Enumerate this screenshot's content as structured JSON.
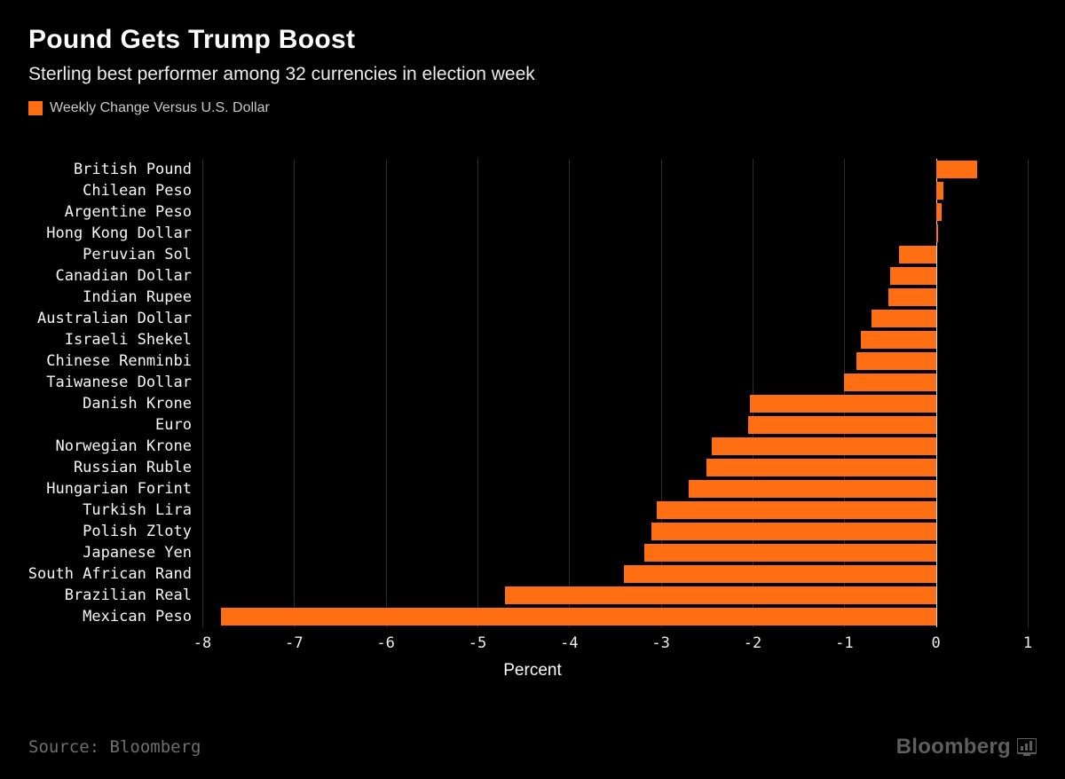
{
  "header": {
    "title": "Pound Gets Trump Boost",
    "subtitle": "Sterling best performer among 32 currencies in election week"
  },
  "legend": {
    "label": "Weekly Change Versus U.S. Dollar",
    "swatch_color": "#ff6e12"
  },
  "chart_data": {
    "type": "bar",
    "orientation": "horizontal",
    "title": "Pound Gets Trump Boost",
    "subtitle": "Sterling best performer among 32 currencies in election week",
    "series_name": "Weekly Change Versus U.S. Dollar",
    "categories": [
      "British Pound",
      "Chilean Peso",
      "Argentine Peso",
      "Hong Kong Dollar",
      "Peruvian Sol",
      "Canadian Dollar",
      "Indian Rupee",
      "Australian Dollar",
      "Israeli Shekel",
      "Chinese Renminbi",
      "Taiwanese Dollar",
      "Danish Krone",
      "Euro",
      "Norwegian Krone",
      "Russian Ruble",
      "Hungarian Forint",
      "Turkish Lira",
      "Polish Zloty",
      "Japanese Yen",
      "South African Rand",
      "Brazilian Real",
      "Mexican Peso"
    ],
    "values": [
      0.45,
      0.08,
      0.06,
      0.02,
      -0.4,
      -0.5,
      -0.52,
      -0.7,
      -0.82,
      -0.87,
      -1.0,
      -2.03,
      -2.05,
      -2.45,
      -2.5,
      -2.7,
      -3.05,
      -3.1,
      -3.18,
      -3.4,
      -4.7,
      -7.8
    ],
    "xlabel": "Percent",
    "ylabel": "",
    "xlim": [
      -8,
      1
    ],
    "xticks": [
      -8,
      -7,
      -6,
      -5,
      -4,
      -3,
      -2,
      -1,
      0,
      1
    ],
    "grid": true,
    "legend_position": "top-left",
    "colors": {
      "bar": "#ff6e12",
      "grid": "#2e2e2e",
      "zero_line": "#d9d9d9",
      "background": "#000000",
      "text": "#ffffff"
    }
  },
  "footer": {
    "source": "Source: Bloomberg",
    "logo_text": "Bloomberg",
    "logo_icon": "bloomberg-chart-icon"
  }
}
